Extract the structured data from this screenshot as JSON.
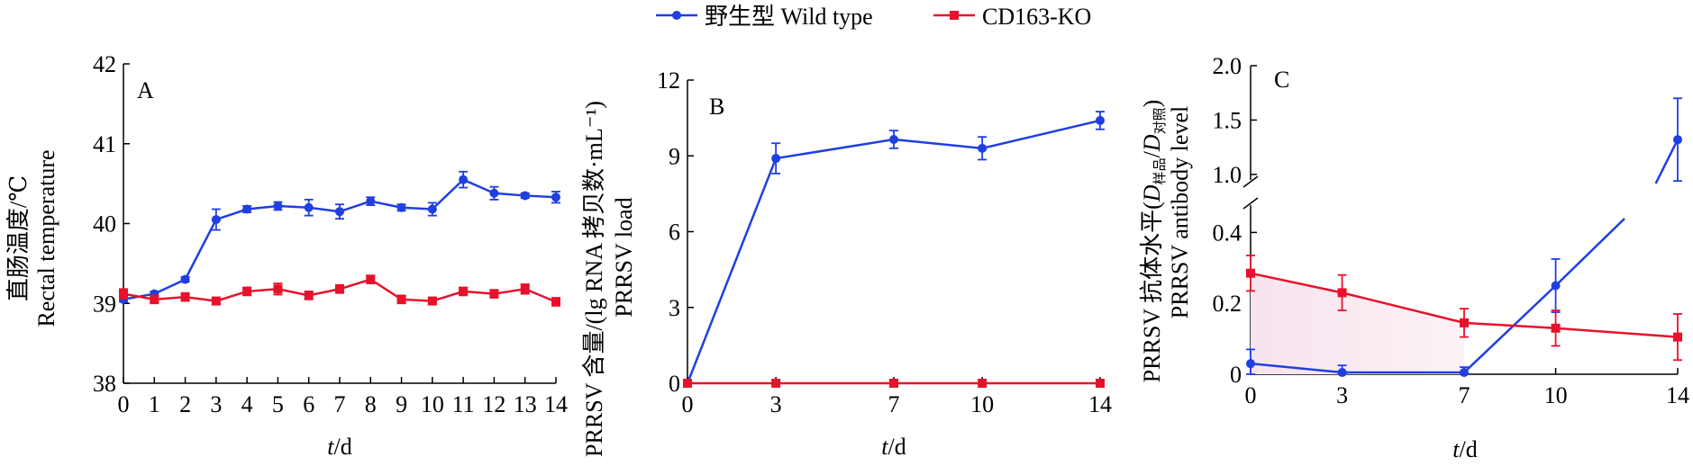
{
  "legend": [
    {
      "label": "野生型 Wild type",
      "color": "#1f3fe0",
      "marker": "circle"
    },
    {
      "label": "CD163-KO",
      "color": "#e8112b",
      "marker": "square"
    }
  ],
  "chart_data": [
    {
      "type": "line",
      "panel": "A",
      "ylabel_cn": "直肠温度/℃",
      "ylabel_en": "Rectal temperature",
      "xlabel_italic": "t",
      "xlabel_unit": "/d",
      "xlim": [
        0,
        14
      ],
      "ylim": [
        38,
        42
      ],
      "x": [
        0,
        1,
        2,
        3,
        4,
        5,
        6,
        7,
        8,
        9,
        10,
        11,
        12,
        13,
        14
      ],
      "x_ticks": [
        "0",
        "1",
        "2",
        "3",
        "4",
        "5",
        "6",
        "7",
        "8",
        "9",
        "10",
        "11",
        "12",
        "13",
        "14"
      ],
      "y_ticks": [
        "38",
        "39",
        "40",
        "41",
        "42"
      ],
      "series": [
        {
          "name": "野生型 Wild type",
          "values": [
            39.05,
            39.12,
            39.3,
            40.05,
            40.18,
            40.22,
            40.2,
            40.15,
            40.28,
            40.2,
            40.18,
            40.55,
            40.38,
            40.35,
            40.33
          ],
          "errors": [
            0.03,
            0.03,
            0.03,
            0.13,
            0.04,
            0.05,
            0.1,
            0.09,
            0.05,
            0.04,
            0.08,
            0.1,
            0.08,
            0.03,
            0.07
          ]
        },
        {
          "name": "CD163-KO",
          "values": [
            39.12,
            39.05,
            39.08,
            39.03,
            39.15,
            39.18,
            39.1,
            39.18,
            39.3,
            39.05,
            39.03,
            39.15,
            39.12,
            39.18,
            39.02
          ],
          "errors": [
            0.06,
            0.05,
            0.05,
            0.04,
            0.05,
            0.07,
            0.05,
            0.05,
            0.05,
            0.05,
            0.04,
            0.05,
            0.05,
            0.06,
            0.05
          ]
        }
      ]
    },
    {
      "type": "line",
      "panel": "B",
      "ylabel_cn": "PRRSV 含量/(lg RNA 拷贝数·mL⁻¹)",
      "ylabel_en": "PRRSV load",
      "xlabel_italic": "t",
      "xlabel_unit": "/d",
      "ylim": [
        0,
        12
      ],
      "x": [
        0,
        3,
        7,
        10,
        14
      ],
      "x_ticks": [
        "0",
        "3",
        "7",
        "10",
        "14"
      ],
      "y_ticks": [
        "0",
        "3",
        "6",
        "9",
        "12"
      ],
      "series": [
        {
          "name": "野生型 Wild type",
          "values": [
            0,
            8.9,
            9.65,
            9.3,
            10.4
          ],
          "errors": [
            0,
            0.6,
            0.35,
            0.45,
            0.35
          ]
        },
        {
          "name": "CD163-KO",
          "values": [
            0,
            0,
            0,
            0,
            0
          ],
          "errors": [
            0,
            0,
            0,
            0,
            0
          ]
        }
      ]
    },
    {
      "type": "line",
      "panel": "C",
      "ylabel_cn": "PRRSV 抗体水平(",
      "ylabel_sym1": "D",
      "ylabel_sub1": "样品",
      "ylabel_slash": "/",
      "ylabel_sym2": "D",
      "ylabel_sub2": "对照",
      "ylabel_close": ")",
      "ylabel_en": "PRRSV antibody level",
      "xlabel_italic": "t",
      "xlabel_unit": "/d",
      "x": [
        0,
        3,
        7,
        10,
        14
      ],
      "x_ticks": [
        "0",
        "3",
        "7",
        "10",
        "14"
      ],
      "y_axis_break": {
        "lower": [
          0,
          0.5
        ],
        "upper": [
          0.85,
          2.0
        ]
      },
      "y_ticks_lower": [
        "0",
        "0.2",
        "0.4"
      ],
      "y_ticks_upper": [
        "1.0",
        "1.5",
        "2.0"
      ],
      "series": [
        {
          "name": "野生型 Wild type",
          "values": [
            0.03,
            0.005,
            0.005,
            0.25,
            1.32
          ],
          "errors": [
            0.04,
            0.02,
            0.015,
            0.075,
            0.38
          ]
        },
        {
          "name": "CD163-KO",
          "values": [
            0.285,
            0.23,
            0.145,
            0.13,
            0.105
          ],
          "errors": [
            0.05,
            0.05,
            0.04,
            0.05,
            0.065
          ]
        }
      ]
    }
  ]
}
